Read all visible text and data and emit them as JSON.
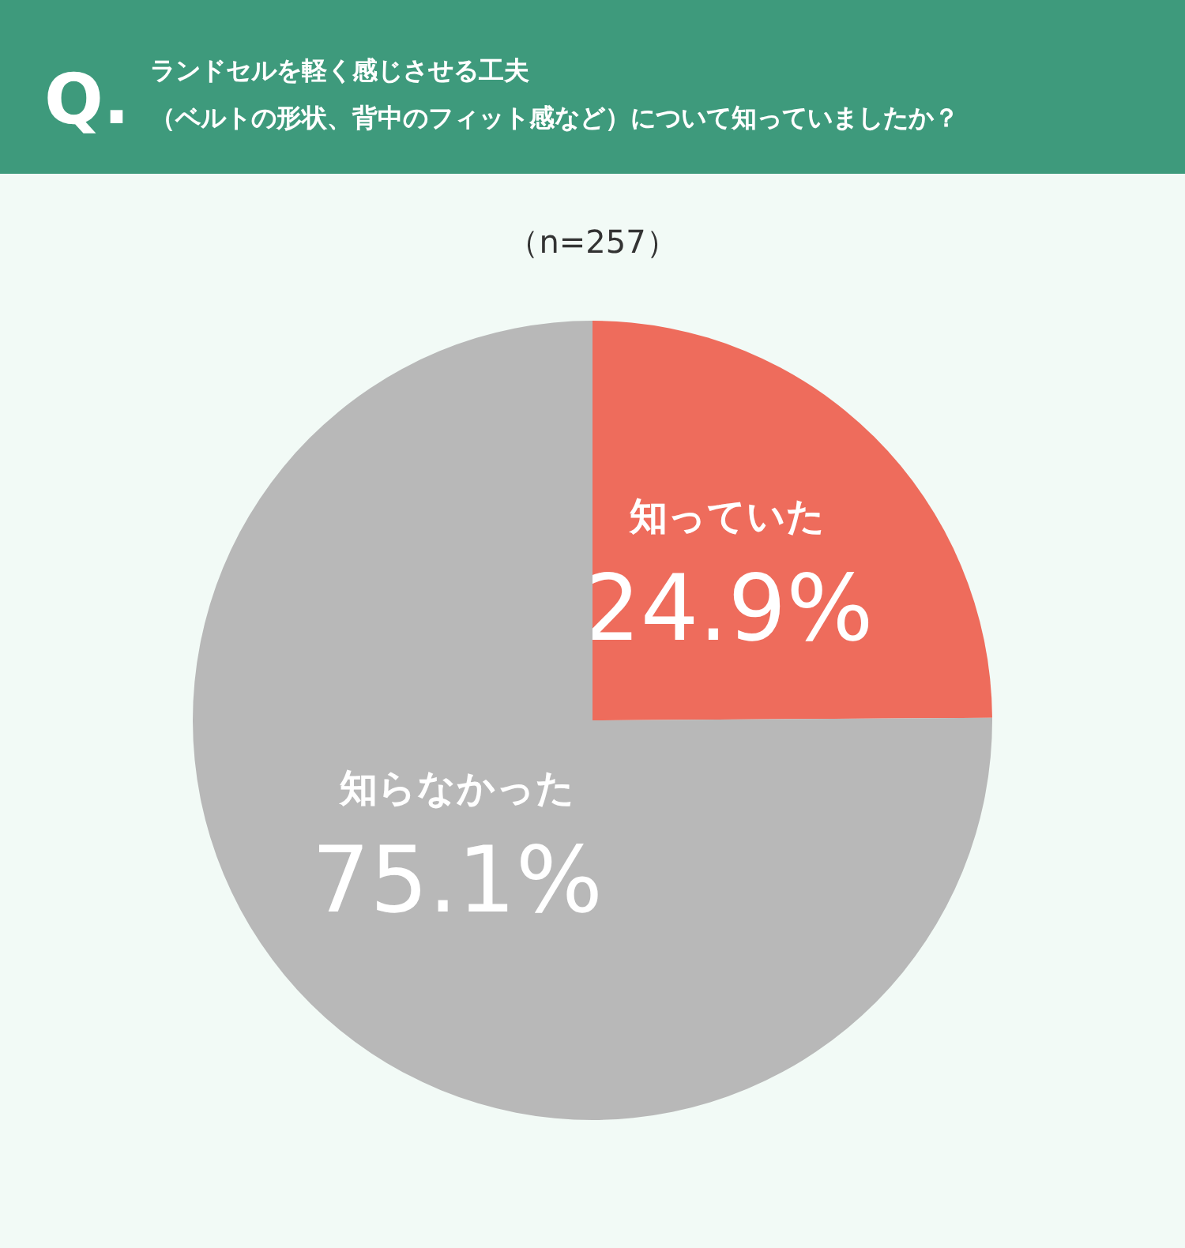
{
  "chart_data": {
    "type": "pie",
    "title": "ランドセルを軽く感じさせる工夫（ベルトの形状、背中のフィット感など）について知っていましたか？",
    "subtitle": "（n=257）",
    "annotations": [
      "Q."
    ],
    "categories": [
      "知っていた",
      "知らなかった"
    ],
    "values": [
      24.9,
      75.1
    ],
    "value_labels": [
      "24.9%",
      "75.1%"
    ],
    "colors": [
      "#ee6c5c",
      "#b8b8b8"
    ]
  }
}
